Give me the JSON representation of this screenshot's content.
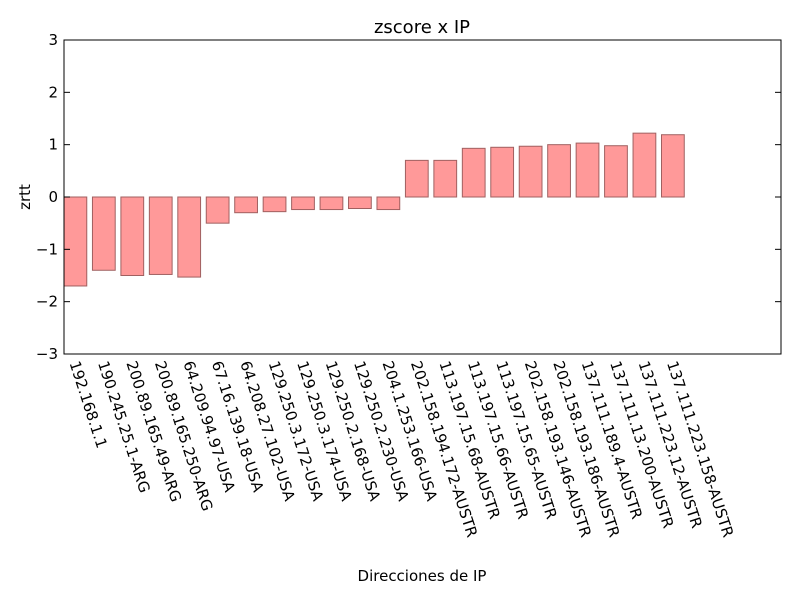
{
  "chart_data": {
    "type": "bar",
    "title": "zscore x IP",
    "xlabel": "Direcciones de IP",
    "ylabel": "zrtt",
    "ylim": [
      -3,
      3
    ],
    "yticks": [
      "−3",
      "−2",
      "−1",
      "0",
      "1",
      "2",
      "3"
    ],
    "grid": false,
    "categories": [
      "192.168.1.1",
      "190.245.25.1-ARG",
      "200.89.165.49-ARG",
      "200.89.165.250-ARG",
      "64.209.94.97-USA",
      "67.16.139.18-USA",
      "64.208.27.102-USA",
      "129.250.3.172-USA",
      "129.250.3.174-USA",
      "129.250.2.168-USA",
      "129.250.2.230-USA",
      "204.1.253.166-USA",
      "202.158.194.172-AUSTR",
      "113.197.15.68-AUSTR",
      "113.197.15.66-AUSTR",
      "113.197.15.65-AUSTR",
      "202.158.193.146-AUSTR",
      "202.158.193.186-AUSTR",
      "137.111.189.4-AUSTR",
      "137.111.13.200-AUSTR",
      "137.111.223.12-AUSTR",
      "137.111.223.158-AUSTR"
    ],
    "values": [
      -1.7,
      -1.4,
      -1.5,
      -1.48,
      -1.53,
      -0.5,
      -0.3,
      -0.28,
      -0.24,
      -0.24,
      -0.22,
      -0.24,
      0.7,
      0.7,
      0.93,
      0.95,
      0.97,
      1.0,
      1.03,
      0.98,
      1.22,
      1.19
    ],
    "colors": {
      "bar_fill": "#ff9999",
      "bar_edge": "#a06060"
    }
  }
}
